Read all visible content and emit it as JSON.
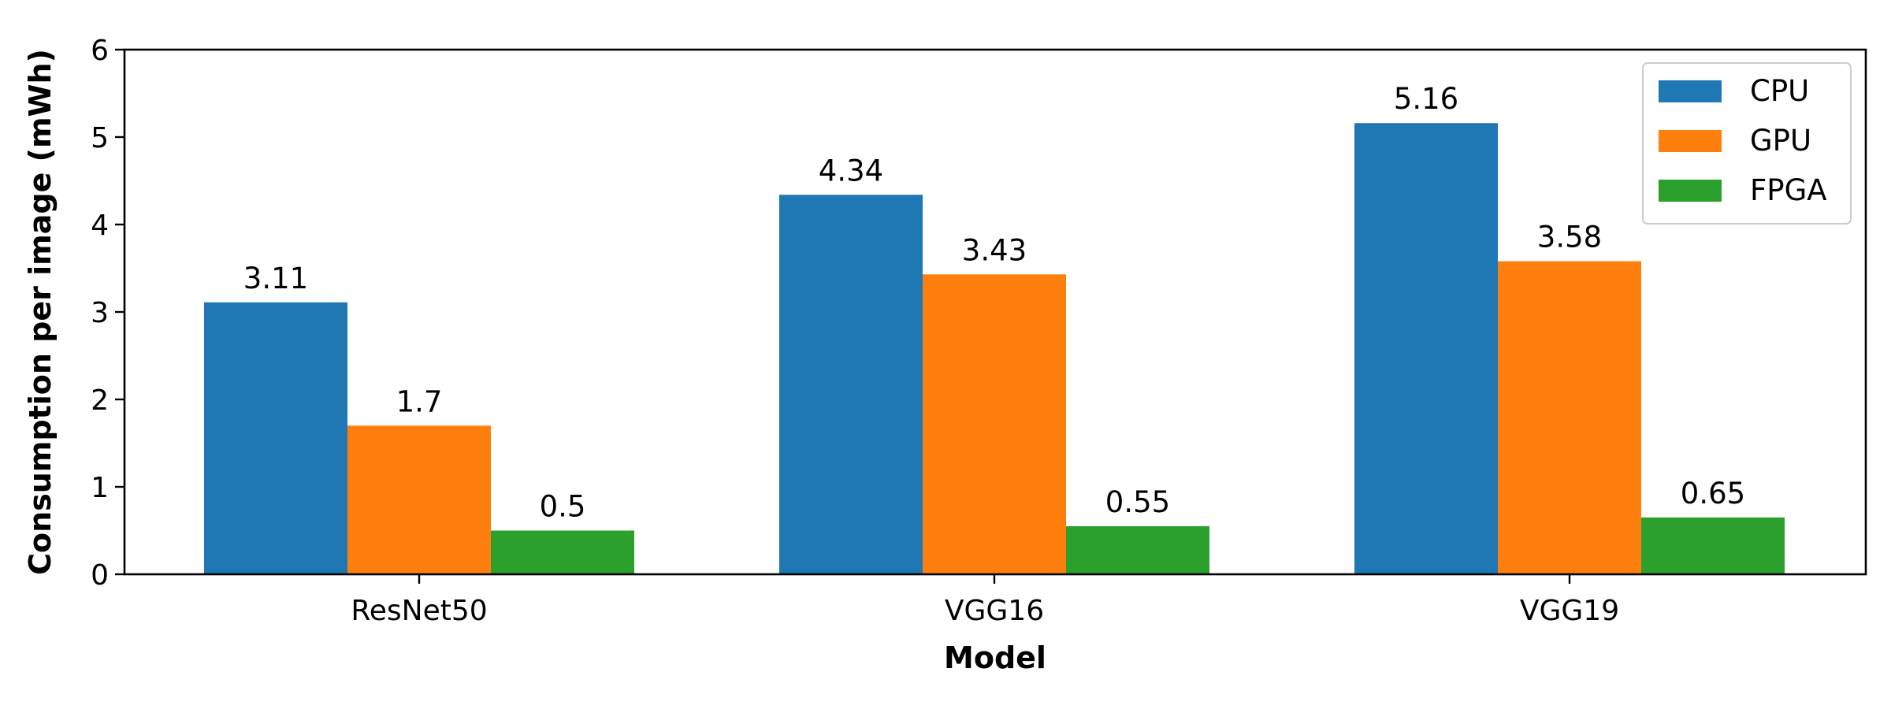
{
  "chart_data": {
    "type": "bar",
    "categories": [
      "ResNet50",
      "VGG16",
      "VGG19"
    ],
    "series": [
      {
        "name": "CPU",
        "values": [
          3.11,
          4.34,
          5.16
        ],
        "color": "#1f77b4"
      },
      {
        "name": "GPU",
        "values": [
          1.7,
          3.43,
          3.58
        ],
        "color": "#ff7f0e"
      },
      {
        "name": "FPGA",
        "values": [
          0.5,
          0.55,
          0.65
        ],
        "color": "#2ca02c"
      }
    ],
    "data_labels": [
      [
        "3.11",
        "4.34",
        "5.16"
      ],
      [
        "1.7",
        "3.43",
        "3.58"
      ],
      [
        "0.5",
        "0.55",
        "0.65"
      ]
    ],
    "title": "",
    "xlabel": "Model",
    "ylabel": "Consumption per image (mWh)",
    "ylim": [
      0,
      6
    ],
    "yticks": [
      "0",
      "1",
      "2",
      "3",
      "4",
      "5",
      "6"
    ],
    "grid": false,
    "legend_position": "top-right"
  }
}
